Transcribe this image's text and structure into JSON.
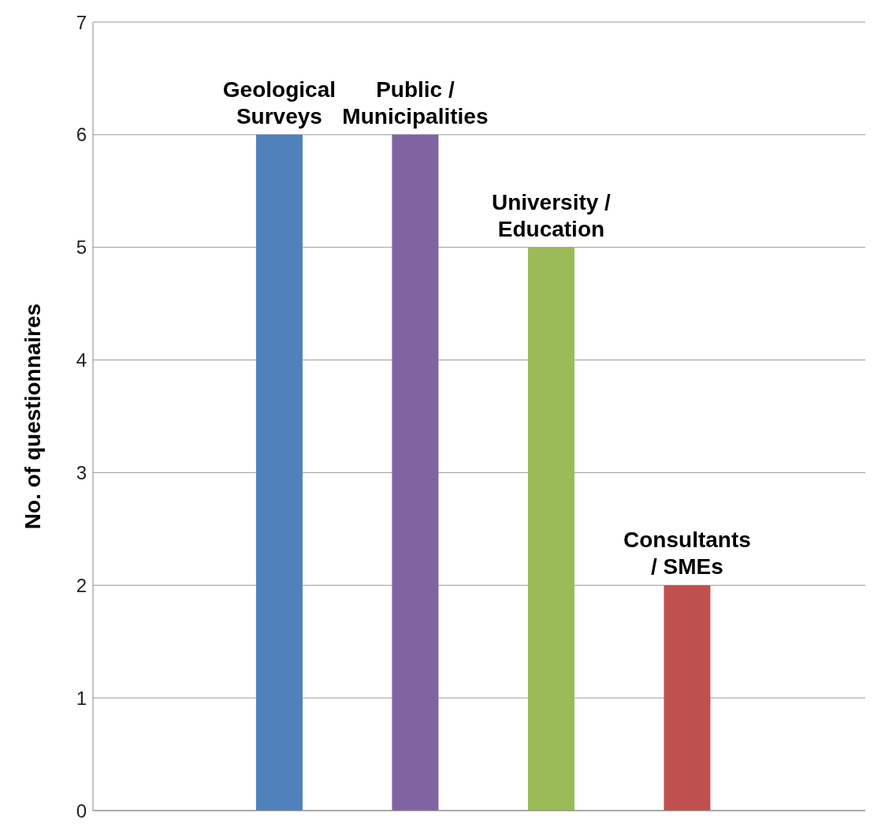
{
  "chart_data": {
    "type": "bar",
    "ylabel": "No. of questionnaires",
    "categories": [
      "Geological Surveys",
      "Public / Municipalities",
      "University / Education",
      "Consultants / SMEs"
    ],
    "values": [
      6,
      6,
      5,
      2
    ],
    "colors": [
      "#4f81bd",
      "#8064a2",
      "#9bbb59",
      "#c0504d"
    ],
    "ylim": [
      0,
      7
    ],
    "yticks": [
      0,
      1,
      2,
      3,
      4,
      5,
      6,
      7
    ],
    "grid": "y",
    "tick_labels": "y",
    "legend": false
  }
}
